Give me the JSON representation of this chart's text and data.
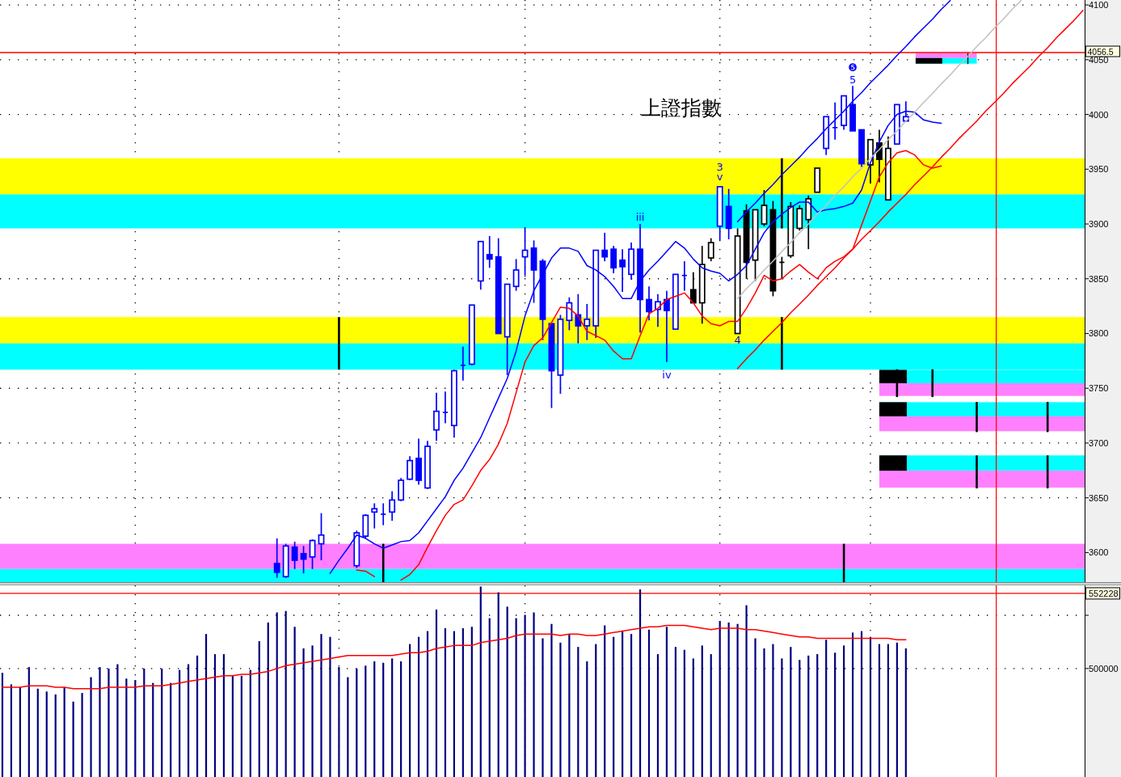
{
  "chart_data": [
    {
      "type": "candlestick",
      "title": "上證指數",
      "categories": [
        null,
        null,
        null,
        null,
        null,
        null,
        null,
        null,
        null,
        null,
        null,
        null,
        null,
        null,
        null,
        null,
        null,
        null,
        null,
        null,
        null,
        null,
        null,
        null,
        null,
        null,
        null,
        null,
        null,
        null,
        null,
        null,
        null,
        null,
        null,
        null,
        null,
        null,
        null,
        null,
        null,
        null,
        null,
        null,
        null,
        null,
        null,
        null,
        null,
        null,
        null,
        null,
        null,
        null,
        null,
        null,
        null,
        null,
        null,
        null,
        null,
        null,
        null,
        null,
        null,
        null,
        null,
        null,
        null,
        null,
        null,
        null,
        null,
        null,
        null,
        null,
        null,
        null,
        null,
        null,
        null,
        null,
        null,
        null,
        null,
        null,
        null,
        null,
        null,
        null,
        null,
        null,
        null,
        null,
        null,
        null,
        null,
        null,
        null,
        null,
        null,
        null,
        null,
        null,
        null,
        null,
        null,
        null,
        null,
        null,
        null,
        null,
        null,
        null,
        null,
        null,
        null,
        null,
        null,
        null,
        null,
        null,
        null
      ],
      "ohlc": [
        null,
        null,
        null,
        null,
        null,
        null,
        null,
        null,
        null,
        null,
        null,
        null,
        null,
        null,
        null,
        null,
        null,
        null,
        null,
        null,
        null,
        null,
        null,
        null,
        null,
        null,
        null,
        null,
        null,
        null,
        null,
        [
          3590,
          3613,
          3577,
          3582
        ],
        [
          3578,
          3608,
          3577,
          3606
        ],
        [
          3605,
          3610,
          3585,
          3593
        ],
        [
          3599,
          3606,
          3581,
          3594
        ],
        [
          3596,
          3612,
          3585,
          3611
        ],
        [
          3608,
          3636,
          3593,
          3616
        ],
        null,
        null,
        null,
        [
          3588,
          3620,
          3586,
          3618
        ],
        [
          3615,
          3635,
          3613,
          3634
        ],
        [
          3637,
          3645,
          3622,
          3640
        ],
        [
          3635,
          3645,
          3625,
          3635
        ],
        [
          3637,
          3656,
          3629,
          3648
        ],
        [
          3648,
          3668,
          3647,
          3666
        ],
        [
          3667,
          3688,
          3666,
          3684
        ],
        [
          3686,
          3704,
          3662,
          3666
        ],
        [
          3659,
          3702,
          3658,
          3697
        ],
        [
          3712,
          3746,
          3702,
          3729
        ],
        [
          3728,
          3747,
          3718,
          3728
        ],
        [
          3716,
          3767,
          3705,
          3766
        ],
        [
          3771,
          3788,
          3757,
          3771
        ],
        [
          3772,
          3826,
          3771,
          3826
        ],
        [
          3848,
          3884,
          3840,
          3884
        ],
        [
          3872,
          3889,
          3860,
          3868
        ],
        [
          3870,
          3887,
          3800,
          3800
        ],
        [
          3797,
          3845,
          3762,
          3845
        ],
        [
          3843,
          3868,
          3839,
          3858
        ],
        [
          3870,
          3897,
          3853,
          3876
        ],
        [
          3878,
          3885,
          3828,
          3858
        ],
        [
          3866,
          3868,
          3794,
          3813
        ],
        [
          3809,
          3809,
          3732,
          3766
        ],
        [
          3762,
          3817,
          3745,
          3813
        ],
        [
          3812,
          3833,
          3803,
          3828
        ],
        [
          3817,
          3836,
          3791,
          3807
        ],
        [
          3807,
          3827,
          3794,
          3813
        ],
        [
          3807,
          3876,
          3796,
          3876
        ],
        [
          3876,
          3892,
          3866,
          3870
        ],
        [
          3877,
          3880,
          3855,
          3860
        ],
        [
          3867,
          3877,
          3838,
          3861
        ],
        [
          3854,
          3883,
          3849,
          3877
        ],
        [
          3877,
          3900,
          3801,
          3831
        ],
        [
          3831,
          3843,
          3812,
          3820
        ],
        [
          3822,
          3836,
          3806,
          3829
        ],
        [
          3831,
          3839,
          3774,
          3821
        ],
        [
          3804,
          3854,
          3804,
          3854
        ],
        [
          3853,
          3866,
          3839,
          3853
        ],
        [
          3840,
          3856,
          3828,
          3828
        ],
        [
          3828,
          3880,
          3809,
          3863
        ],
        [
          3869,
          3887,
          3866,
          3883
        ],
        [
          3898,
          3934,
          3885,
          3934
        ],
        [
          3916,
          3932,
          3886,
          3896
        ],
        [
          3800,
          3896,
          3800,
          3889
        ],
        [
          3912,
          3918,
          3850,
          3865
        ],
        [
          3867,
          3913,
          3848,
          3913
        ],
        [
          3900,
          3931,
          3898,
          3917
        ],
        [
          3913,
          3921,
          3834,
          3839
        ],
        [
          3865,
          3870,
          3850,
          3865
        ],
        [
          3871,
          3920,
          3869,
          3916
        ],
        [
          3896,
          3917,
          3894,
          3914
        ],
        [
          3904,
          3926,
          3877,
          3923
        ],
        [
          3929,
          3951,
          3929,
          3951
        ],
        [
          3969,
          3998,
          3963,
          3998
        ],
        [
          3988,
          4011,
          3977,
          3988
        ],
        [
          3990,
          4017,
          3986,
          4017
        ],
        [
          4009,
          4026,
          3985,
          3985
        ],
        [
          3986,
          3986,
          3952,
          3955
        ],
        [
          3954,
          3977,
          3937,
          3977
        ],
        [
          3974,
          3986,
          3938,
          3959
        ],
        [
          3922,
          3980,
          3922,
          3969
        ],
        [
          3973,
          4009,
          3973,
          4009
        ],
        [
          3994,
          4012,
          3994,
          3998
        ],
        null,
        null,
        null,
        null,
        null,
        null,
        null,
        null,
        null,
        null,
        null,
        null,
        null,
        null,
        null,
        null,
        null,
        null,
        null,
        null
      ],
      "colors": [
        null,
        null,
        null,
        null,
        null,
        null,
        null,
        null,
        null,
        null,
        null,
        null,
        null,
        null,
        null,
        null,
        null,
        null,
        null,
        null,
        null,
        null,
        null,
        null,
        null,
        null,
        null,
        null,
        null,
        null,
        null,
        "#0000ff",
        "#0000ff",
        "#0000ff",
        "#0000ff",
        "#0000ff",
        "#0000ff",
        null,
        null,
        null,
        "#0000ff",
        "#0000ff",
        "#0000ff",
        "#0000ff",
        "#0000ff",
        "#0000ff",
        "#0000ff",
        "#0000ff",
        "#0000ff",
        "#0000ff",
        "#0000ff",
        "#0000ff",
        "#0000ff",
        "#0000ff",
        "#0000ff",
        "#0000ff",
        "#0000ff",
        "#0000ff",
        "#0000ff",
        "#0000ff",
        "#0000ff",
        "#0000ff",
        "#0000ff",
        "#0000ff",
        "#0000ff",
        "#0000ff",
        "#0000ff",
        "#0000ff",
        "#0000ff",
        "#0000ff",
        "#0000ff",
        "#0000ff",
        "#0000ff",
        "#0000ff",
        "#0000ff",
        "#0000ff",
        "#0000ff",
        "#0000ff",
        "#000000",
        "#000000",
        "#000000",
        "#0000ff",
        "#0000ff",
        "#000000",
        "#000000",
        "#000000",
        "#000000",
        "#000000",
        "#000000",
        "#000000",
        "#000000",
        "#000000",
        "#000000",
        "#0000ff",
        "#0000ff",
        "#0000ff",
        "#0000ff",
        "#0000ff",
        "#000000",
        "#000000",
        "#000000",
        "#0000ff",
        "#0000ff",
        null,
        null,
        null,
        null,
        null,
        null,
        null,
        null,
        null,
        null,
        null,
        null,
        null,
        null,
        null,
        null,
        null,
        null,
        null,
        null
      ],
      "series": [
        {
          "type": "line",
          "color": "#0000ff",
          "values": [
            null,
            null,
            null,
            null,
            null,
            null,
            null,
            null,
            null,
            null,
            null,
            null,
            null,
            null,
            null,
            null,
            null,
            null,
            null,
            null,
            null,
            null,
            null,
            null,
            null,
            null,
            null,
            null,
            null,
            null,
            null,
            null,
            null,
            null,
            null,
            null,
            null,
            3581,
            3593,
            3604,
            3616,
            3613,
            3608,
            3604,
            3607,
            3610,
            3611,
            3618,
            3629,
            3640,
            3651,
            3666,
            3677,
            3691,
            3705,
            3723,
            3741,
            3759,
            3784,
            3816,
            3839,
            3854,
            3869,
            3878,
            3878,
            3875,
            3862,
            3858,
            3852,
            3843,
            3832,
            3832,
            3848,
            3858,
            3866,
            3875,
            3884,
            3878,
            3868,
            3860,
            3857,
            3855,
            3848,
            3854,
            3862,
            3877,
            3892,
            3902,
            3909,
            3915,
            3920,
            3920,
            3911,
            3913,
            3914,
            3916,
            3919,
            3931,
            3956,
            3975,
            3990,
            4000,
            4003,
            4002,
            3995,
            3993,
            3992,
            null,
            null,
            null,
            null,
            null,
            null,
            null,
            null,
            null,
            null,
            null,
            null,
            null,
            null,
            null,
            null
          ]
        },
        {
          "type": "line",
          "color": "#ff0000",
          "values": [
            null,
            null,
            null,
            null,
            null,
            null,
            null,
            null,
            null,
            null,
            null,
            null,
            null,
            null,
            null,
            null,
            null,
            null,
            null,
            null,
            null,
            null,
            null,
            null,
            null,
            null,
            null,
            null,
            null,
            null,
            null,
            null,
            null,
            null,
            null,
            null,
            null,
            null,
            null,
            null,
            3584,
            3583,
            3578,
            null,
            null,
            3575,
            3580,
            3589,
            3605,
            3620,
            3634,
            3644,
            3648,
            3661,
            3675,
            3685,
            3699,
            3718,
            3746,
            3774,
            3789,
            3796,
            3810,
            3824,
            3823,
            3816,
            3802,
            3798,
            3794,
            3784,
            3777,
            3777,
            3798,
            3818,
            3823,
            3831,
            3834,
            3837,
            3828,
            3816,
            3809,
            3807,
            3811,
            3811,
            3823,
            3837,
            3853,
            3848,
            3850,
            3857,
            3863,
            3856,
            3850,
            3860,
            3866,
            3870,
            3877,
            3899,
            3921,
            3943,
            3956,
            3965,
            3967,
            3963,
            3954,
            3951,
            3953,
            null,
            null,
            null,
            null,
            null,
            null,
            null,
            null,
            null,
            null,
            null,
            null,
            null,
            null,
            null,
            null
          ]
        },
        {
          "type": "line",
          "color": "#0000ff",
          "values": [
            null,
            null,
            null,
            null,
            null,
            null,
            null,
            null,
            null,
            null,
            null,
            null,
            null,
            null,
            null,
            null,
            null,
            null,
            null,
            null,
            null,
            null,
            null,
            null,
            null,
            null,
            null,
            null,
            null,
            null,
            null,
            null,
            null,
            null,
            null,
            null,
            null,
            null,
            null,
            null,
            null,
            null,
            null,
            null,
            null,
            null,
            null,
            null,
            null,
            null,
            null,
            null,
            null,
            null,
            null,
            null,
            null,
            null,
            null,
            null,
            null,
            null,
            null,
            null,
            null,
            null,
            null,
            null,
            null,
            null,
            null,
            null,
            null,
            null,
            null,
            null,
            null,
            null,
            null,
            null,
            null,
            null,
            null,
            3902,
            3911,
            3919,
            3928,
            3936,
            3945,
            3953,
            3961,
            3970,
            3978,
            3987,
            3995,
            4003,
            4012,
            4020,
            4029,
            4037,
            4045,
            4054,
            4062,
            4071,
            4079,
            4087,
            4096,
            4104,
            null,
            null,
            null,
            null,
            null,
            null,
            null,
            null,
            null,
            null,
            null,
            null,
            null,
            null,
            null
          ]
        },
        {
          "type": "line",
          "color": "#c0c0c0",
          "values": [
            null,
            null,
            null,
            null,
            null,
            null,
            null,
            null,
            null,
            null,
            null,
            null,
            null,
            null,
            null,
            null,
            null,
            null,
            null,
            null,
            null,
            null,
            null,
            null,
            null,
            null,
            null,
            null,
            null,
            null,
            null,
            null,
            null,
            null,
            null,
            null,
            null,
            null,
            null,
            null,
            null,
            null,
            null,
            null,
            null,
            null,
            null,
            null,
            null,
            null,
            null,
            null,
            null,
            null,
            null,
            null,
            null,
            null,
            null,
            null,
            null,
            null,
            null,
            null,
            null,
            null,
            null,
            null,
            null,
            null,
            null,
            null,
            null,
            null,
            null,
            null,
            null,
            null,
            null,
            null,
            null,
            null,
            null,
            3832,
            3841,
            3849,
            3858,
            3866,
            3875,
            3883,
            3892,
            3900,
            3909,
            3917,
            3926,
            3934,
            3943,
            3951,
            3960,
            3968,
            3977,
            3985,
            3994,
            4002,
            4011,
            4019,
            4028,
            4036,
            4045,
            4053,
            4062,
            4070,
            4079,
            4087,
            4096,
            4104,
            null,
            null,
            null,
            null,
            null,
            null,
            null
          ]
        },
        {
          "type": "line",
          "color": "#ff0000",
          "values": [
            null,
            null,
            null,
            null,
            null,
            null,
            null,
            null,
            null,
            null,
            null,
            null,
            null,
            null,
            null,
            null,
            null,
            null,
            null,
            null,
            null,
            null,
            null,
            null,
            null,
            null,
            null,
            null,
            null,
            null,
            null,
            null,
            null,
            null,
            null,
            null,
            null,
            null,
            null,
            null,
            null,
            null,
            null,
            null,
            null,
            null,
            null,
            null,
            null,
            null,
            null,
            null,
            null,
            null,
            null,
            null,
            null,
            null,
            null,
            null,
            null,
            null,
            null,
            null,
            null,
            null,
            null,
            null,
            null,
            null,
            null,
            null,
            null,
            null,
            null,
            null,
            null,
            null,
            null,
            null,
            null,
            null,
            null,
            3768,
            3777,
            3785,
            3794,
            3802,
            3810,
            3819,
            3827,
            3835,
            3844,
            3852,
            3860,
            3869,
            3877,
            3886,
            3894,
            3902,
            3911,
            3919,
            3927,
            3936,
            3944,
            3952,
            3961,
            3969,
            3978,
            3986,
            3994,
            4003,
            4011,
            4019,
            4028,
            4036,
            4044,
            4053,
            4061,
            4070,
            4078,
            4086,
            4095
          ]
        }
      ],
      "ylim": [
        3573,
        4104.5
      ],
      "yticks": [
        3600,
        3650,
        3700,
        3750,
        3800,
        3850,
        3900,
        3950,
        4000,
        4050,
        4100
      ],
      "grid": true,
      "tick_labels": "y",
      "bands": [
        {
          "axis": "y",
          "from": 3927,
          "to": 3960,
          "color": "#ffff00"
        },
        {
          "axis": "y",
          "from": 3896,
          "to": 3927,
          "color": "#00ffff"
        },
        {
          "axis": "y",
          "from": 3791,
          "to": 3815,
          "color": "#ffff00"
        },
        {
          "axis": "y",
          "from": 3767,
          "to": 3791,
          "color": "#00ffff"
        },
        {
          "axis": "y",
          "from": 3585,
          "to": 3608,
          "color": "#ff80ff"
        },
        {
          "axis": "y",
          "from": 3573,
          "to": 3585,
          "color": "#00ffff"
        }
      ],
      "ref_lines": [
        {
          "axis": "y",
          "value": 4056.5,
          "label": "4056.5",
          "color": "#ff0000"
        }
      ],
      "annotations": [
        "iii",
        "iv",
        "3",
        "v",
        {
          "text": "4",
          "y": 3794
        },
        "5",
        "❺"
      ]
    },
    {
      "type": "bar",
      "categories": [
        null,
        null,
        null,
        null,
        null,
        null,
        null,
        null,
        null,
        null,
        null,
        null,
        null,
        null,
        null,
        null,
        null,
        null,
        null,
        null,
        null,
        null,
        null,
        null,
        null,
        null,
        null,
        null,
        null,
        null,
        null,
        null,
        null,
        null,
        null,
        null,
        null,
        null,
        null,
        null,
        null,
        null,
        null,
        null,
        null,
        null,
        null,
        null,
        null,
        null,
        null,
        null,
        null,
        null,
        null,
        null,
        null,
        null,
        null,
        null,
        null,
        null,
        null,
        null,
        null,
        null,
        null,
        null,
        null,
        null,
        null,
        null,
        null,
        null,
        null,
        null,
        null,
        null,
        null,
        null,
        null,
        null,
        null,
        null,
        null,
        null,
        null,
        null,
        null,
        null,
        null,
        null,
        null,
        null,
        null,
        null,
        null,
        null,
        null,
        null,
        null,
        null,
        null,
        null,
        null,
        null,
        null,
        null,
        null,
        null,
        null,
        null,
        null,
        null,
        null,
        null,
        null,
        null,
        null,
        null,
        null,
        null,
        null
      ],
      "series": [
        {
          "color": "#000080",
          "values": [
            497000,
            489000,
            487000,
            501000,
            486000,
            484000,
            482000,
            487000,
            477000,
            483000,
            494000,
            501000,
            500000,
            503000,
            493000,
            492000,
            500000,
            490000,
            500000,
            490000,
            499000,
            503000,
            509000,
            524000,
            510000,
            510000,
            495000,
            495000,
            499000,
            519000,
            532000,
            539000,
            540000,
            529000,
            514000,
            516000,
            524000,
            522000,
            501000,
            494000,
            500000,
            502000,
            505000,
            504000,
            507000,
            505000,
            517000,
            522000,
            526000,
            541000,
            528000,
            526000,
            528000,
            529000,
            557000,
            535000,
            553000,
            543000,
            535000,
            537000,
            539000,
            521000,
            531000,
            518000,
            524000,
            515000,
            505000,
            517000,
            530000,
            522000,
            526000,
            524000,
            555000,
            527000,
            510000,
            529000,
            515000,
            513000,
            507000,
            516000,
            510000,
            533000,
            532000,
            531000,
            544000,
            521000,
            514000,
            517000,
            507000,
            515000,
            506000,
            509000,
            510000,
            520000,
            511000,
            516000,
            525000,
            526000,
            522000,
            517000,
            517000,
            518000,
            514000,
            null,
            null,
            null,
            null,
            null,
            null,
            null,
            null,
            null,
            null,
            null,
            null,
            null,
            null,
            null,
            null,
            null,
            null,
            null,
            null
          ]
        },
        {
          "type": "line",
          "color": "#ff0000",
          "values": [
            487000,
            487000,
            487000,
            488000,
            488000,
            488000,
            487000,
            487000,
            486000,
            486000,
            486000,
            486000,
            487000,
            487000,
            487000,
            487000,
            488000,
            488000,
            488000,
            489000,
            490000,
            491000,
            492000,
            493000,
            494000,
            495000,
            495000,
            496000,
            496000,
            497000,
            498000,
            500000,
            502000,
            503000,
            504000,
            505000,
            506000,
            507000,
            508000,
            509000,
            509000,
            509000,
            509000,
            509000,
            509000,
            510000,
            511000,
            511000,
            512000,
            514000,
            515000,
            516000,
            516000,
            516000,
            518000,
            519000,
            520000,
            521000,
            523000,
            524000,
            524000,
            524000,
            524000,
            523000,
            524000,
            524000,
            523000,
            523000,
            524000,
            525000,
            526000,
            527000,
            528000,
            529000,
            529000,
            530000,
            530000,
            530000,
            529000,
            528000,
            527000,
            528000,
            528000,
            528000,
            527000,
            527000,
            526000,
            525000,
            524000,
            523000,
            522000,
            522000,
            521000,
            521000,
            521000,
            521000,
            521000,
            521000,
            521000,
            521000,
            521000,
            520000,
            520000,
            null,
            null,
            null,
            null,
            null,
            null,
            null,
            null,
            null,
            null,
            null,
            null,
            null,
            null,
            null,
            null,
            null,
            null,
            null,
            null
          ]
        }
      ],
      "ylim": [
        424600,
        557800
      ],
      "yticks": [
        {
          "value": 537000,
          "label": null
        },
        500000,
        552228
      ],
      "grid": true,
      "tick_labels": "y",
      "ref_lines": [
        {
          "axis": "y",
          "value": 552228,
          "color": "#ff0000"
        }
      ]
    }
  ]
}
